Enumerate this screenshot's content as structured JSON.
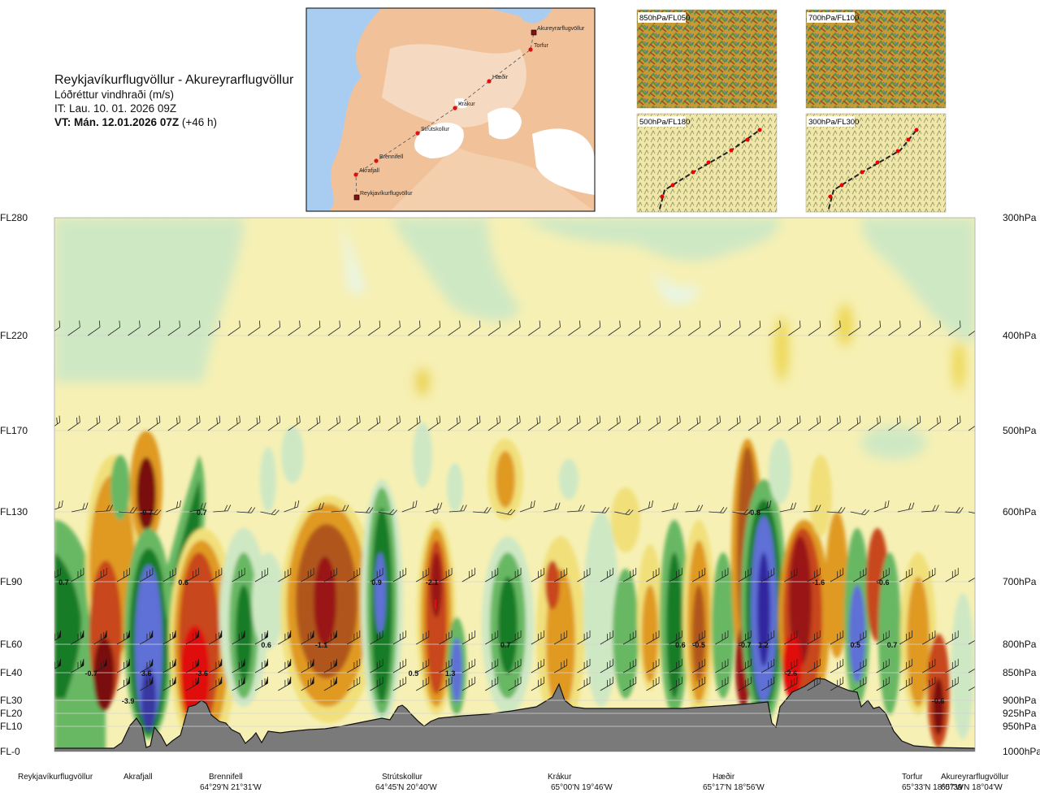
{
  "header": {
    "title": "Reykjavíkurflugvöllur - Akureyrarflugvöllur",
    "subtitle": "Lóðréttur vindhraði (m/s)",
    "issue_time": "IT: Lau. 10. 01. 2026 09Z",
    "valid_prefix": "VT: Mán. 12.01.2026 07Z",
    "valid_suffix": "(+46 h)"
  },
  "route_map": {
    "points": [
      {
        "name": "Reykjavíkurflugvöllur"
      },
      {
        "name": "Akrafjall"
      },
      {
        "name": "Brennifell"
      },
      {
        "name": "Strútskollur"
      },
      {
        "name": "Krákur"
      },
      {
        "name": "Hæðir"
      },
      {
        "name": "Torfur"
      },
      {
        "name": "Akureyrarflugvöllur"
      }
    ]
  },
  "panels": [
    {
      "label": "850hPa/FL050"
    },
    {
      "label": "700hPa/FL100"
    },
    {
      "label": "500hPa/FL180"
    },
    {
      "label": "300hPa/FL300"
    }
  ],
  "colors": {
    "strong_up": "#7a1010",
    "up": "#c8461e",
    "weak_up": "#e09a20",
    "slight_up": "#f1e07a",
    "neutral": "#f6f0b4",
    "slight_down": "#d4ebc8",
    "down": "#68b864",
    "strong_down": "#177c27",
    "very_strong_down": "#5f6fd6",
    "terrain": "#7a7a7a"
  },
  "chart_data": {
    "type": "heatmap",
    "title": "Lóðréttur vindhraði (m/s)",
    "left_axis": [
      "FL280",
      "FL220",
      "FL170",
      "FL130",
      "FL90",
      "FL60",
      "FL40",
      "FL30",
      "FL20",
      "FL10",
      "FL-0"
    ],
    "right_axis": [
      "300hPa",
      "400hPa",
      "500hPa",
      "600hPa",
      "700hPa",
      "800hPa",
      "850hPa",
      "900hPa",
      "925hPa",
      "950hPa",
      "1000hPa"
    ],
    "stations": [
      {
        "name": "Reykjavíkurflugvöllur",
        "coord": ""
      },
      {
        "name": "Akrafjall",
        "coord": ""
      },
      {
        "name": "Brennifell",
        "coord": "64°29'N 21°31'W"
      },
      {
        "name": "Strútskollur",
        "coord": "64°45'N 20°40'W"
      },
      {
        "name": "Krákur",
        "coord": "65°00'N 19°46'W"
      },
      {
        "name": "Hæðir",
        "coord": "65°17'N 18°56'W"
      },
      {
        "name": "Torfur",
        "coord": "65°33'N 18°07'W"
      },
      {
        "name": "Akureyrarflugvöllur",
        "coord": "65°39'N 18°04'W"
      }
    ],
    "value_labels": [
      {
        "text": "-0.7",
        "dist": 0.1,
        "level": "FL130"
      },
      {
        "text": "0.7",
        "dist": 0.16,
        "level": "FL130"
      },
      {
        "text": "-0.8",
        "dist": 0.76,
        "level": "FL130"
      },
      {
        "text": "0.7",
        "dist": 0.01,
        "level": "FL90"
      },
      {
        "text": "0.6",
        "dist": 0.14,
        "level": "FL90"
      },
      {
        "text": "0.9",
        "dist": 0.35,
        "level": "FL90"
      },
      {
        "text": "-2.1",
        "dist": 0.41,
        "level": "FL90"
      },
      {
        "text": "-1.6",
        "dist": 0.83,
        "level": "FL90"
      },
      {
        "text": "-0.6",
        "dist": 0.9,
        "level": "FL90"
      },
      {
        "text": "0.6",
        "dist": 0.23,
        "level": "FL60"
      },
      {
        "text": "-1.1",
        "dist": 0.29,
        "level": "FL60"
      },
      {
        "text": "0.7",
        "dist": 0.49,
        "level": "FL60"
      },
      {
        "text": "0.6",
        "dist": 0.68,
        "level": "FL60"
      },
      {
        "text": "-0.5",
        "dist": 0.7,
        "level": "FL60"
      },
      {
        "text": "-0.7",
        "dist": 0.75,
        "level": "FL60"
      },
      {
        "text": "1.2",
        "dist": 0.77,
        "level": "FL60"
      },
      {
        "text": "0.5",
        "dist": 0.87,
        "level": "FL60"
      },
      {
        "text": "0.7",
        "dist": 0.91,
        "level": "FL60"
      },
      {
        "text": "-0.7",
        "dist": 0.04,
        "level": "FL40"
      },
      {
        "text": "3.6",
        "dist": 0.1,
        "level": "FL40"
      },
      {
        "text": "-3.6",
        "dist": 0.16,
        "level": "FL40"
      },
      {
        "text": "0.5",
        "dist": 0.39,
        "level": "FL40"
      },
      {
        "text": "1.3",
        "dist": 0.43,
        "level": "FL40"
      },
      {
        "text": "-2.6",
        "dist": 0.8,
        "level": "FL40"
      },
      {
        "text": "-3.9",
        "dist": 0.08,
        "level": "FL30"
      },
      {
        "text": "-0.6",
        "dist": 0.96,
        "level": "FL30"
      }
    ]
  }
}
